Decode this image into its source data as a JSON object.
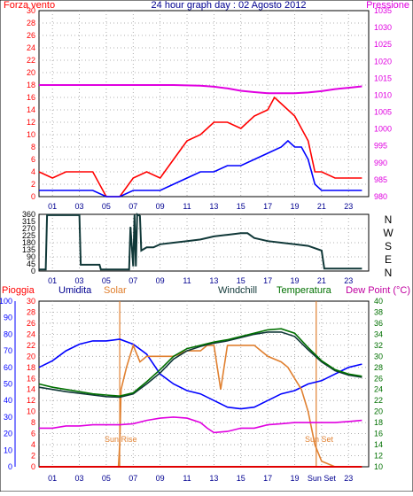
{
  "colors": {
    "red": "#ff0000",
    "blue": "#0000ff",
    "magenta": "#e000e0",
    "navy": "#000090",
    "teal": "#103838",
    "orange": "#e08030",
    "green": "#007000",
    "pink_dark": "#c000a0"
  },
  "panel1": {
    "label_wind": "Forza vento",
    "title": "24 hour graph day : 02 Agosto 2012",
    "label_pressure": "Pressione",
    "left_ticks": [
      "0",
      "2",
      "4",
      "6",
      "8",
      "10",
      "12",
      "14",
      "16",
      "18",
      "20",
      "22",
      "24",
      "26",
      "28",
      "30"
    ],
    "right_ticks": [
      "980",
      "985",
      "990",
      "995",
      "1000",
      "1005",
      "1010",
      "1015",
      "1020",
      "1025",
      "1030",
      "1035"
    ],
    "x_ticks": [
      "01",
      "03",
      "05",
      "07",
      "09",
      "11",
      "13",
      "15",
      "17",
      "19",
      "21",
      "23"
    ]
  },
  "panel2": {
    "left_ticks": [
      "0",
      "45",
      "90",
      "135",
      "180",
      "225",
      "270",
      "315",
      "360"
    ],
    "compass": [
      "N",
      "W",
      "S",
      "E",
      "N"
    ],
    "x_ticks": [
      "01",
      "03",
      "05",
      "07",
      "09",
      "11",
      "13",
      "15",
      "17",
      "19",
      "21",
      "23"
    ]
  },
  "panel3": {
    "label_rain": "Pioggia",
    "label_humidity": "Umidita",
    "label_solar": "Solar",
    "label_windchill": "Windchill",
    "label_temperature": "Temperatura",
    "label_dewpoint": "Dew Point (°C)",
    "humidity_ticks": [
      "0",
      "10",
      "20",
      "30",
      "40",
      "50",
      "60",
      "70",
      "80",
      "90",
      "100"
    ],
    "rain_ticks": [
      "0",
      "2",
      "4",
      "6",
      "8",
      "10",
      "12",
      "14",
      "16",
      "18",
      "20",
      "22",
      "24",
      "26",
      "28",
      "30"
    ],
    "temp_ticks": [
      "10",
      "12",
      "14",
      "16",
      "18",
      "20",
      "22",
      "24",
      "26",
      "28",
      "30",
      "32",
      "34",
      "36",
      "38",
      "40"
    ],
    "sunrise_label": "Sun Rise",
    "sunset_label": "Sun Set",
    "x_ticks": [
      "01",
      "03",
      "05",
      "07",
      "09",
      "11",
      "13",
      "15",
      "17",
      "19",
      "Sun Set",
      "23"
    ]
  },
  "chart_data": [
    {
      "type": "line",
      "title": "24 hour graph day : 02 Agosto 2012",
      "x_unit": "hour",
      "xlim": [
        0,
        24.5
      ],
      "y_left": {
        "label": "Forza vento",
        "lim": [
          0,
          30
        ]
      },
      "y_right": {
        "label": "Pressione",
        "lim": [
          980,
          1035
        ]
      },
      "series": [
        {
          "name": "wind gust",
          "axis": "left",
          "color": "#ff0000",
          "x": [
            0,
            1,
            2,
            3,
            4,
            5,
            6,
            7,
            8,
            9,
            10,
            11,
            12,
            12.5,
            13,
            14,
            15,
            16,
            17,
            17.5,
            18,
            18.5,
            19,
            19.5,
            20,
            20.5,
            21,
            22,
            23,
            24
          ],
          "y": [
            4,
            3,
            4,
            4,
            4,
            0,
            0,
            3,
            4,
            3,
            6,
            9,
            10,
            11,
            12,
            12,
            11,
            13,
            14,
            16,
            15,
            14,
            13,
            11,
            9,
            4,
            4,
            3,
            3,
            3
          ]
        },
        {
          "name": "wind average",
          "axis": "left",
          "color": "#0000ff",
          "x": [
            0,
            1,
            2,
            3,
            4,
            5,
            6,
            7,
            8,
            9,
            10,
            11,
            12,
            13,
            14,
            15,
            16,
            17,
            18,
            18.5,
            19,
            19.5,
            20,
            20.5,
            21,
            22,
            23,
            24
          ],
          "y": [
            1,
            1,
            1,
            1,
            1,
            0,
            0,
            1,
            1,
            1,
            2,
            3,
            4,
            4,
            5,
            5,
            6,
            7,
            8,
            9,
            8,
            8,
            6,
            2,
            1,
            1,
            1,
            1
          ]
        },
        {
          "name": "pressure",
          "axis": "right",
          "color": "#e000e0",
          "x": [
            0,
            2,
            4,
            6,
            8,
            10,
            12,
            13,
            14,
            15,
            16,
            17,
            18,
            19,
            20,
            21,
            22,
            23,
            24
          ],
          "y": [
            1013,
            1013,
            1013,
            1013,
            1013,
            1013,
            1012.8,
            1012.5,
            1012,
            1011.3,
            1010.9,
            1010.6,
            1010.6,
            1010.6,
            1010.8,
            1011.2,
            1011.8,
            1012.2,
            1012.6
          ]
        }
      ]
    },
    {
      "type": "line",
      "title": "",
      "x_unit": "hour",
      "xlim": [
        0,
        24.5
      ],
      "ylim": [
        0,
        360
      ],
      "series": [
        {
          "name": "wind direction",
          "color": "#103838",
          "x": [
            0,
            0.5,
            0.6,
            3.0,
            3.1,
            3.5,
            4.5,
            4.6,
            6.5,
            6.7,
            6.8,
            7.0,
            7.1,
            7.2,
            7.3,
            7.5,
            7.6,
            8.0,
            8.5,
            9,
            10,
            11,
            12,
            13,
            14,
            15,
            15.5,
            16,
            17,
            18,
            19,
            20,
            21,
            21.2,
            22,
            23,
            24
          ],
          "y": [
            10,
            10,
            355,
            355,
            40,
            40,
            40,
            10,
            10,
            10,
            280,
            30,
            360,
            30,
            360,
            350,
            130,
            150,
            150,
            170,
            180,
            190,
            200,
            220,
            230,
            240,
            240,
            210,
            190,
            180,
            170,
            160,
            130,
            15,
            15,
            15,
            15
          ]
        }
      ]
    },
    {
      "type": "line",
      "title": "",
      "x_unit": "hour",
      "xlim": [
        0,
        24.5
      ],
      "y_left_humidity": {
        "label": "Umidita",
        "lim": [
          0,
          100
        ]
      },
      "y_left_rain": {
        "label": "Pioggia",
        "lim": [
          0,
          30
        ]
      },
      "y_right": {
        "label": "Dew Point (°C)",
        "lim": [
          10,
          40
        ]
      },
      "series": [
        {
          "name": "Umidita",
          "axis": "humidity",
          "color": "#0000ff",
          "x": [
            0,
            1,
            2,
            3,
            4,
            5,
            6,
            7,
            8,
            9,
            10,
            11,
            12,
            13,
            14,
            15,
            16,
            17,
            18,
            19,
            20,
            21,
            22,
            23,
            24
          ],
          "y": [
            60,
            64,
            70,
            74,
            76,
            76,
            77,
            74,
            68,
            56,
            50,
            46,
            44,
            40,
            36,
            35,
            36,
            40,
            44,
            46,
            50,
            52,
            56,
            60,
            62
          ]
        },
        {
          "name": "Solar",
          "axis": "rain",
          "color": "#e08030",
          "x": [
            0,
            5.9,
            6,
            6.1,
            6.5,
            7,
            7.5,
            8,
            9,
            10,
            11,
            12,
            12.5,
            13,
            13.5,
            14,
            15,
            16,
            17,
            18,
            18.5,
            19,
            19.5,
            20,
            20.5,
            21,
            22,
            23,
            24
          ],
          "y": [
            0,
            0,
            4,
            14,
            18,
            22,
            19,
            20,
            20,
            20,
            21,
            21,
            22,
            22,
            14,
            22,
            22,
            22,
            20,
            19,
            18,
            16,
            14,
            10,
            4,
            1,
            0,
            0,
            0
          ]
        },
        {
          "name": "Windchill",
          "axis": "temp",
          "color": "#103838",
          "x": [
            0,
            1,
            2,
            3,
            4,
            5,
            6,
            7,
            8,
            9,
            10,
            11,
            12,
            13,
            14,
            15,
            16,
            17,
            18,
            19,
            20,
            21,
            22,
            23,
            24
          ],
          "y": [
            24.4,
            24,
            23.6,
            23.3,
            23,
            22.7,
            22.6,
            23.2,
            25,
            27,
            29.5,
            31,
            31.8,
            32.4,
            32.8,
            33.4,
            34,
            34.4,
            34.4,
            33.6,
            31.2,
            29,
            27.4,
            26.6,
            26.2
          ]
        },
        {
          "name": "Temperatura",
          "axis": "temp",
          "color": "#007000",
          "x": [
            0,
            1,
            2,
            3,
            4,
            5,
            6,
            7,
            8,
            9,
            10,
            11,
            12,
            13,
            14,
            15,
            16,
            17,
            18,
            19,
            20,
            21,
            22,
            23,
            24
          ],
          "y": [
            25,
            24.4,
            24,
            23.6,
            23.2,
            23,
            22.8,
            23.4,
            25.4,
            27.6,
            30,
            31.4,
            32,
            32.6,
            33,
            33.6,
            34.2,
            34.8,
            35,
            34.2,
            31.6,
            29.2,
            27.6,
            26.8,
            26.4
          ]
        },
        {
          "name": "Dew Point",
          "axis": "temp",
          "color": "#e000e0",
          "x": [
            0,
            1,
            2,
            3,
            4,
            5,
            6,
            7,
            8,
            9,
            10,
            11,
            12,
            12.5,
            13,
            14,
            15,
            16,
            17,
            18,
            19,
            20,
            21,
            22,
            23,
            24
          ],
          "y": [
            17,
            17,
            17.4,
            17.4,
            17.6,
            17.6,
            17.6,
            17.8,
            18.4,
            18.8,
            19,
            18.8,
            18,
            17,
            16.2,
            16.4,
            17,
            17,
            17.6,
            17.8,
            18,
            18,
            18,
            18,
            18.2,
            18.4
          ]
        },
        {
          "name": "Pioggia",
          "axis": "rain",
          "color": "#e00000",
          "x": [
            0,
            24
          ],
          "y": [
            0,
            0
          ]
        }
      ],
      "sunrise_hour": 6.0,
      "sunset_hour": 20.6
    }
  ]
}
